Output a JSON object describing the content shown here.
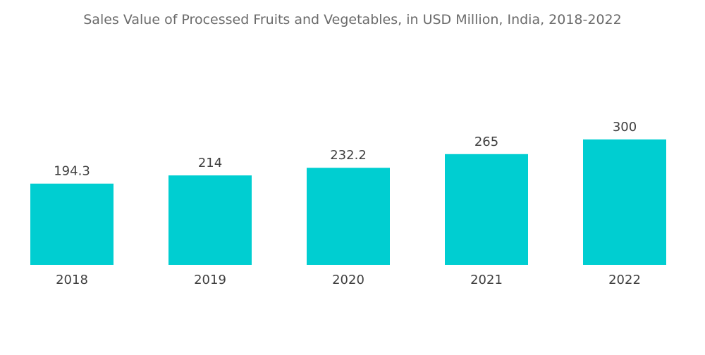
{
  "chart_data": {
    "type": "bar",
    "title": "Sales Value of Processed Fruits and Vegetables, in USD Million, India, 2018-2022",
    "xlabel": "",
    "ylabel": "",
    "categories": [
      "2018",
      "2019",
      "2020",
      "2021",
      "2022"
    ],
    "values": [
      194.3,
      214,
      232.2,
      265,
      300
    ],
    "value_labels": [
      "194.3",
      "214",
      "232.2",
      "265",
      "300"
    ],
    "ylim": [
      0,
      300
    ],
    "grid": false,
    "legend": "none",
    "bar_color": "#00ced1"
  }
}
